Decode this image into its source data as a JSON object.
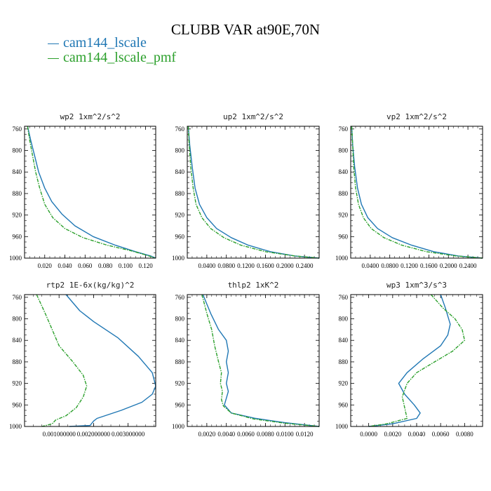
{
  "title": "CLUBB VAR at90E,70N",
  "legend": [
    {
      "label": "cam144_lscale",
      "color": "#1f77b4"
    },
    {
      "label": "cam144_lscale_pmf",
      "color": "#2ca02c"
    }
  ],
  "chart_data": [
    {
      "type": "line",
      "title": "wp2   1xm^2/s^2",
      "xlim": [
        0,
        0.13
      ],
      "ylim": [
        1000,
        755
      ],
      "xticks": [
        0.02,
        0.04,
        0.06,
        0.08,
        0.1,
        0.12
      ],
      "xticklabels": [
        "0.020",
        "0.040",
        "0.060",
        "0.080",
        "0.100",
        "0.120"
      ],
      "yticks": [
        760,
        800,
        840,
        880,
        920,
        960,
        1000
      ],
      "yticklabels": [
        "760",
        "800",
        "840",
        "880",
        "920",
        "960",
        "1000"
      ],
      "series": [
        {
          "name": "cam144_lscale",
          "color": "#1f77b4",
          "x": [
            0.003,
            0.006,
            0.01,
            0.014,
            0.02,
            0.027,
            0.037,
            0.05,
            0.068,
            0.09,
            0.11,
            0.125,
            0.13
          ],
          "y": [
            755,
            780,
            810,
            840,
            870,
            895,
            918,
            940,
            960,
            976,
            988,
            996,
            1000
          ]
        },
        {
          "name": "cam144_lscale_pmf",
          "color": "#2ca02c",
          "x": [
            0.003,
            0.005,
            0.008,
            0.011,
            0.015,
            0.02,
            0.028,
            0.04,
            0.058,
            0.082,
            0.105,
            0.12,
            0.13
          ],
          "y": [
            755,
            780,
            810,
            840,
            870,
            900,
            925,
            945,
            962,
            976,
            986,
            994,
            1000
          ]
        }
      ]
    },
    {
      "type": "line",
      "title": "up2   1xm^2/s^2",
      "xlim": [
        0,
        0.27
      ],
      "ylim": [
        1000,
        755
      ],
      "xticks": [
        0.04,
        0.08,
        0.12,
        0.16,
        0.2,
        0.24
      ],
      "xticklabels": [
        "0.0400",
        "0.0800",
        "0.1200",
        "0.1600",
        "0.2000",
        "0.2400"
      ],
      "yticks": [
        760,
        800,
        840,
        880,
        920,
        960,
        1000
      ],
      "yticklabels": [
        "760",
        "800",
        "840",
        "880",
        "920",
        "960",
        "1000"
      ],
      "series": [
        {
          "name": "cam144_lscale",
          "color": "#1f77b4",
          "x": [
            0.002,
            0.005,
            0.01,
            0.016,
            0.025,
            0.04,
            0.06,
            0.09,
            0.125,
            0.17,
            0.22,
            0.27
          ],
          "y": [
            755,
            790,
            830,
            870,
            900,
            925,
            945,
            962,
            976,
            988,
            996,
            1000
          ]
        },
        {
          "name": "cam144_lscale_pmf",
          "color": "#2ca02c",
          "x": [
            0.002,
            0.004,
            0.007,
            0.012,
            0.018,
            0.03,
            0.048,
            0.075,
            0.11,
            0.16,
            0.22,
            0.27
          ],
          "y": [
            755,
            790,
            830,
            870,
            900,
            925,
            945,
            962,
            976,
            988,
            996,
            1000
          ]
        }
      ]
    },
    {
      "type": "line",
      "title": "vp2   1xm^2/s^2",
      "xlim": [
        0,
        0.27
      ],
      "ylim": [
        1000,
        755
      ],
      "xticks": [
        0.04,
        0.08,
        0.12,
        0.16,
        0.2,
        0.24
      ],
      "xticklabels": [
        "0.0400",
        "0.0800",
        "0.1200",
        "0.1600",
        "0.2000",
        "0.2400"
      ],
      "yticks": [
        760,
        800,
        840,
        880,
        920,
        960,
        1000
      ],
      "yticklabels": [
        "760",
        "800",
        "840",
        "880",
        "920",
        "960",
        "1000"
      ],
      "series": [
        {
          "name": "cam144_lscale",
          "color": "#1f77b4",
          "x": [
            0.002,
            0.004,
            0.008,
            0.014,
            0.022,
            0.035,
            0.055,
            0.085,
            0.125,
            0.17,
            0.22,
            0.27
          ],
          "y": [
            755,
            790,
            830,
            870,
            900,
            925,
            945,
            962,
            976,
            988,
            996,
            1000
          ]
        },
        {
          "name": "cam144_lscale_pmf",
          "color": "#2ca02c",
          "x": [
            0.002,
            0.004,
            0.006,
            0.01,
            0.016,
            0.026,
            0.042,
            0.068,
            0.105,
            0.155,
            0.215,
            0.27
          ],
          "y": [
            755,
            790,
            830,
            870,
            900,
            925,
            945,
            962,
            976,
            988,
            996,
            1000
          ]
        }
      ]
    },
    {
      "type": "line",
      "title": "rtp2   1E-6x(kg/kg)^2",
      "xlim": [
        0,
        0.0038
      ],
      "ylim": [
        1000,
        755
      ],
      "xticks": [
        0.001,
        0.002,
        0.003
      ],
      "xticklabels": [
        "0.001000000",
        "0.002000000",
        "0.003000000"
      ],
      "yticks": [
        760,
        800,
        840,
        880,
        920,
        960,
        1000
      ],
      "yticklabels": [
        "760",
        "800",
        "840",
        "880",
        "920",
        "960",
        "1000"
      ],
      "series": [
        {
          "name": "cam144_lscale",
          "color": "#1f77b4",
          "x": [
            0.0012,
            0.0016,
            0.002,
            0.0027,
            0.0033,
            0.0037,
            0.0038,
            0.0037,
            0.0034,
            0.0028,
            0.0021,
            0.002,
            0.0019,
            0.0013
          ],
          "y": [
            755,
            785,
            805,
            835,
            870,
            900,
            925,
            940,
            955,
            970,
            985,
            990,
            998,
            1000
          ]
        },
        {
          "name": "cam144_lscale_pmf",
          "color": "#2ca02c",
          "x": [
            0.00035,
            0.0006,
            0.0008,
            0.001,
            0.0014,
            0.0017,
            0.0018,
            0.0017,
            0.0015,
            0.0012,
            0.0009,
            0.0008,
            0.0005
          ],
          "y": [
            755,
            790,
            820,
            850,
            880,
            905,
            925,
            945,
            965,
            980,
            988,
            995,
            1000
          ]
        }
      ]
    },
    {
      "type": "line",
      "title": "thlp2   1xK^2",
      "xlim": [
        0,
        0.0135
      ],
      "ylim": [
        1000,
        755
      ],
      "xticks": [
        0.002,
        0.004,
        0.006,
        0.008,
        0.01,
        0.012
      ],
      "xticklabels": [
        "0.0020",
        "0.0040",
        "0.0060",
        "0.0080",
        "0.0100",
        "0.0120"
      ],
      "yticks": [
        760,
        800,
        840,
        880,
        920,
        960,
        1000
      ],
      "yticklabels": [
        "760",
        "800",
        "840",
        "880",
        "920",
        "960",
        "1000"
      ],
      "series": [
        {
          "name": "cam144_lscale",
          "color": "#1f77b4",
          "x": [
            0.0016,
            0.0024,
            0.0032,
            0.004,
            0.0042,
            0.004,
            0.0042,
            0.004,
            0.0042,
            0.0038,
            0.0045,
            0.007,
            0.01,
            0.0135
          ],
          "y": [
            755,
            790,
            820,
            840,
            860,
            880,
            900,
            920,
            935,
            960,
            975,
            985,
            993,
            1000
          ]
        },
        {
          "name": "cam144_lscale_pmf",
          "color": "#2ca02c",
          "x": [
            0.0015,
            0.002,
            0.0025,
            0.0028,
            0.0032,
            0.0035,
            0.0034,
            0.0036,
            0.0035,
            0.0037,
            0.0045,
            0.0068,
            0.01,
            0.0135
          ],
          "y": [
            755,
            790,
            820,
            850,
            880,
            900,
            920,
            935,
            950,
            962,
            975,
            986,
            994,
            1000
          ]
        }
      ]
    },
    {
      "type": "line",
      "title": "wp3   1xm^3/s^3",
      "xlim": [
        -0.0015,
        0.0095
      ],
      "ylim": [
        1000,
        755
      ],
      "xticks": [
        0.0,
        0.002,
        0.004,
        0.006,
        0.008
      ],
      "xticklabels": [
        "0.0000",
        "0.0020",
        "0.0040",
        "0.0060",
        "0.0080"
      ],
      "yticks": [
        760,
        800,
        840,
        880,
        920,
        960,
        1000
      ],
      "yticklabels": [
        "760",
        "800",
        "840",
        "880",
        "920",
        "960",
        "1000"
      ],
      "series": [
        {
          "name": "cam144_lscale",
          "color": "#1f77b4",
          "x": [
            0.006,
            0.0064,
            0.0068,
            0.0066,
            0.006,
            0.0045,
            0.0032,
            0.0025,
            0.003,
            0.0038,
            0.0043,
            0.004,
            0.002,
            0.0
          ],
          "y": [
            755,
            780,
            810,
            830,
            850,
            875,
            900,
            920,
            940,
            960,
            975,
            985,
            995,
            1000
          ]
        },
        {
          "name": "cam144_lscale_pmf",
          "color": "#2ca02c",
          "x": [
            0.0052,
            0.0062,
            0.0072,
            0.0078,
            0.008,
            0.007,
            0.0055,
            0.004,
            0.0032,
            0.0028,
            0.003,
            0.0032,
            0.0015,
            0.0
          ],
          "y": [
            755,
            780,
            800,
            820,
            840,
            860,
            880,
            900,
            920,
            945,
            965,
            985,
            995,
            1000
          ]
        }
      ]
    }
  ]
}
